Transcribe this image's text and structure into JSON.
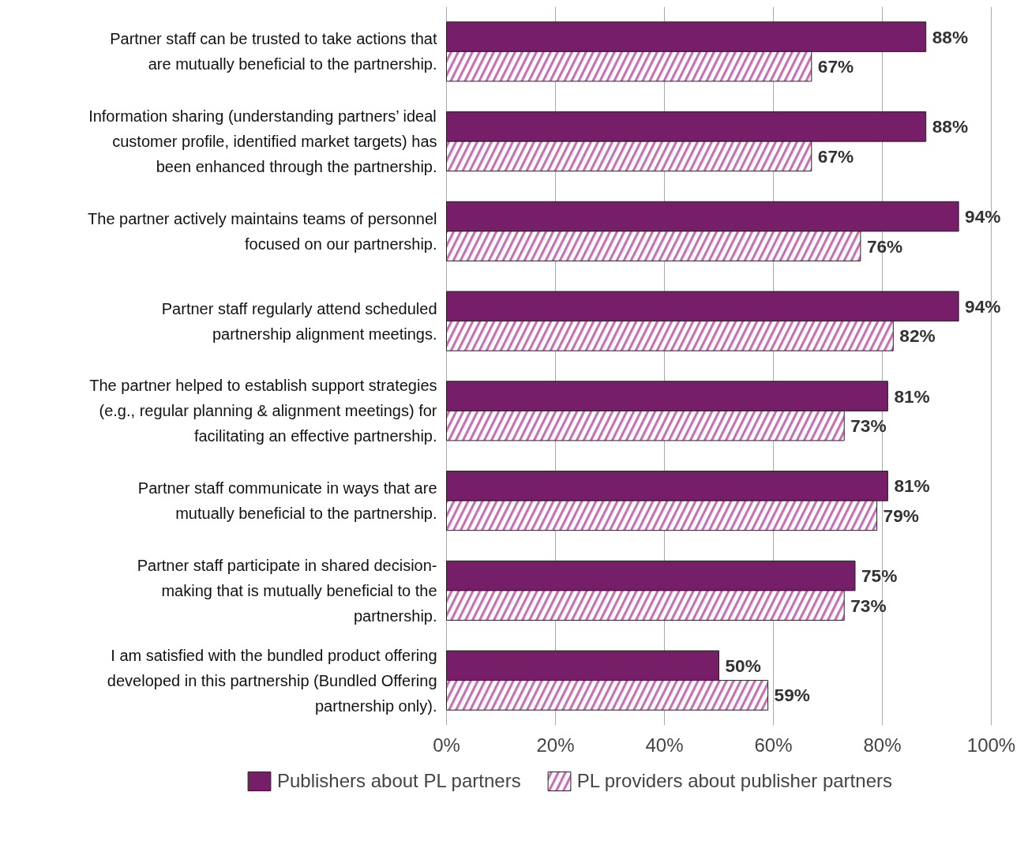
{
  "chart_data": {
    "type": "bar",
    "orientation": "horizontal",
    "categories": [
      "Partner staff can be trusted to take actions that are mutually beneficial to the partnership.",
      "Information sharing (understanding partners’ ideal customer profile, identified market targets) has been enhanced through the partnership.",
      "The partner actively maintains teams of personnel focused on our partnership.",
      "Partner staff regularly attend scheduled partnership alignment meetings.",
      "The partner helped to establish support strategies (e.g., regular planning & alignment meetings) for facilitating an effective partnership.",
      "Partner staff communicate in ways that are mutually beneficial to the partnership.",
      "Partner staff participate in shared decision-making that is mutually beneficial to the partnership.",
      "I am satisfied with the bundled product offering developed in this partnership (Bundled Offering partnership only)."
    ],
    "series": [
      {
        "name": "Publishers about PL partners",
        "color": "#771e69",
        "values": [
          88,
          88,
          94,
          94,
          81,
          81,
          75,
          50
        ],
        "value_labels": [
          "88%",
          "88%",
          "94%",
          "94%",
          "81%",
          "81%",
          "75%",
          "50%"
        ]
      },
      {
        "name": "PL providers about publisher partners",
        "color": "#cc6fb4",
        "values": [
          67,
          67,
          76,
          82,
          73,
          79,
          73,
          59
        ],
        "value_labels": [
          "67%",
          "67%",
          "76%",
          "82%",
          "73%",
          "79%",
          "73%",
          "59%"
        ]
      }
    ],
    "xlim": [
      0,
      100
    ],
    "xticks": [
      {
        "value": 0,
        "label": "0%"
      },
      {
        "value": 20,
        "label": "20%"
      },
      {
        "value": 40,
        "label": "40%"
      },
      {
        "value": 60,
        "label": "60%"
      },
      {
        "value": 80,
        "label": "80%"
      },
      {
        "value": 100,
        "label": "100%"
      }
    ],
    "grid": "x",
    "legend": "bottom"
  }
}
